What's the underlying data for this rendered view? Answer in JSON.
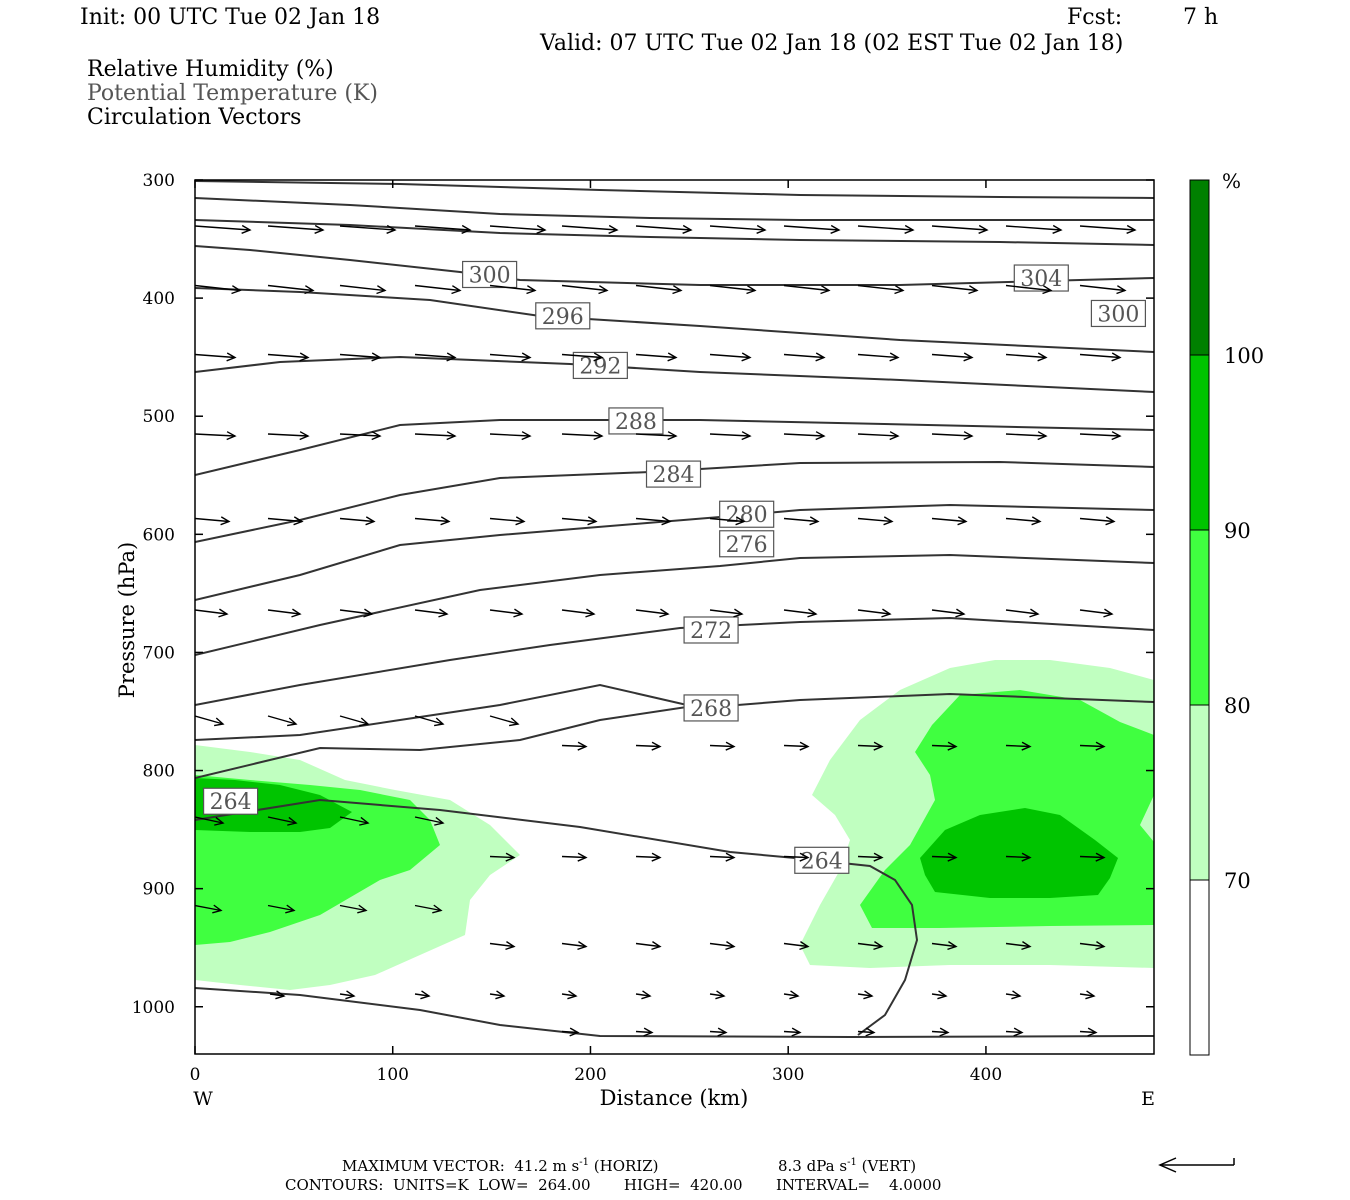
{
  "header": {
    "init": "Init: 00 UTC Tue 02 Jan 18",
    "fcst_label": "Fcst:",
    "fcst_value": "7 h",
    "valid": "Valid: 07 UTC Tue 02 Jan 18 (02 EST Tue 02 Jan 18)"
  },
  "legend": {
    "rh": "Relative Humidity (%)",
    "theta": "Potential Temperature (K)",
    "vectors": "Circulation Vectors"
  },
  "chart_data": {
    "type": "contour-cross-section",
    "xlabel": "Distance (km)",
    "ylabel": "Pressure (hPa)",
    "xlim": [
      0,
      485
    ],
    "ylim": [
      1040,
      300
    ],
    "x_ticks": [
      0,
      100,
      200,
      300,
      400
    ],
    "y_ticks": [
      300,
      400,
      500,
      600,
      700,
      800,
      900,
      1000
    ],
    "x_ends": {
      "left": "W",
      "right": "E"
    },
    "colorbar": {
      "unit": "%",
      "levels": [
        70,
        80,
        90,
        100
      ],
      "colors": [
        "#ffffff",
        "#c0ffc0",
        "#40ff40",
        "#00c400",
        "#008000"
      ]
    },
    "isentrope_labels": [
      {
        "x": 149,
        "p": 380,
        "label": "300"
      },
      {
        "x": 428,
        "p": 383,
        "label": "304"
      },
      {
        "x": 467,
        "p": 413,
        "label": "300"
      },
      {
        "x": 186,
        "p": 415,
        "label": "296"
      },
      {
        "x": 205,
        "p": 457,
        "label": "292"
      },
      {
        "x": 223,
        "p": 504,
        "label": "288"
      },
      {
        "x": 242,
        "p": 549,
        "label": "284"
      },
      {
        "x": 279,
        "p": 583,
        "label": "280"
      },
      {
        "x": 279,
        "p": 608,
        "label": "276"
      },
      {
        "x": 261,
        "p": 681,
        "label": "272"
      },
      {
        "x": 261,
        "p": 747,
        "label": "268"
      },
      {
        "x": 18,
        "p": 826,
        "label": "264"
      },
      {
        "x": 317,
        "p": 876,
        "label": "264"
      }
    ]
  },
  "footer": {
    "max_vector": "MAXIMUM VECTOR:  41.2 m s",
    "max_vector_horiz": "(HORIZ)",
    "max_vector_vert": "8.3 dPa s",
    "max_vector_vert_unit": "(VERT)",
    "contours": "CONTOURS:  UNITS=K  LOW=  264.00       HIGH=  420.00       INTERVAL=    4.0000"
  }
}
